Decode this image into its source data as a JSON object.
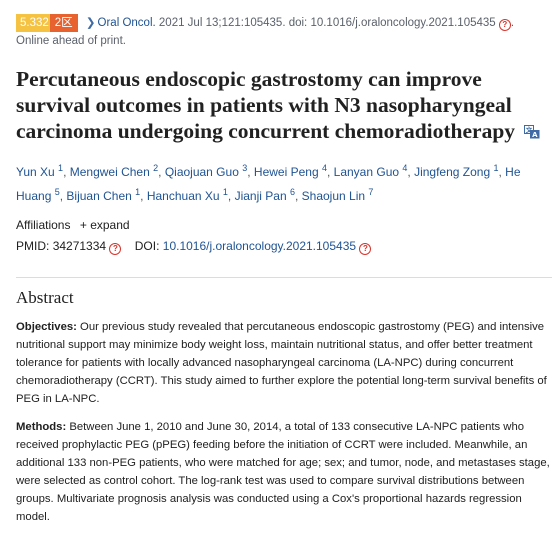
{
  "citation": {
    "impact_factor": "5.332",
    "quartile": "2区",
    "journal": "Oral Oncol.",
    "details": "2021 Jul 13;121:105435. doi: 10.1016/j.oraloncology.2021.105435",
    "status": "Online ahead of print."
  },
  "title": "Percutaneous endoscopic gastrostomy can improve survival outcomes in patients with N3 nasopharyngeal carcinoma undergoing concurrent chemoradiotherapy",
  "authors": [
    {
      "name": "Yun Xu",
      "sup": "1"
    },
    {
      "name": "Mengwei Chen",
      "sup": "2"
    },
    {
      "name": "Qiaojuan Guo",
      "sup": "3"
    },
    {
      "name": "Hewei Peng",
      "sup": "4"
    },
    {
      "name": "Lanyan Guo",
      "sup": "4"
    },
    {
      "name": "Jingfeng Zong",
      "sup": "1"
    },
    {
      "name": "He Huang",
      "sup": "5"
    },
    {
      "name": "Bijuan Chen",
      "sup": "1"
    },
    {
      "name": "Hanchuan Xu",
      "sup": "1"
    },
    {
      "name": "Jianji Pan",
      "sup": "6"
    },
    {
      "name": "Shaojun Lin",
      "sup": "7"
    }
  ],
  "affiliations": {
    "label": "Affiliations",
    "expand": "expand"
  },
  "ids": {
    "pmid_label": "PMID:",
    "pmid": "34271334",
    "doi_label": "DOI:",
    "doi": "10.1016/j.oraloncology.2021.105435"
  },
  "abstract": {
    "heading": "Abstract",
    "objectives_label": "Objectives:",
    "objectives_text": " Our previous study revealed that percutaneous endoscopic gastrostomy (PEG) and intensive nutritional support may minimize body weight loss, maintain nutritional status, and offer better treatment tolerance for patients with locally advanced nasopharyngeal carcinoma (LA-NPC) during concurrent chemoradiotherapy (CCRT). This study aimed to further explore the potential long-term survival benefits of PEG in LA-NPC.",
    "methods_label": "Methods:",
    "methods_text": " Between June 1, 2010 and June 30, 2014, a total of 133 consecutive LA-NPC patients who received prophylactic PEG (pPEG) feeding before the initiation of CCRT were included. Meanwhile, an additional 133 non-PEG patients, who were matched for age; sex; and tumor, node, and metastases stage, were selected as control cohort. The log-rank test was used to compare survival distributions between groups. Multivariate prognosis analysis was conducted using a Cox's proportional hazards regression model."
  },
  "colors": {
    "link": "#205493",
    "if_badge": "#f5c242",
    "quartile_badge": "#e8622f",
    "q_icon": "#d8322a"
  },
  "icons": {
    "translate": "translate-icon",
    "question": "question-circle-icon",
    "chevron": "chevron-right-icon"
  }
}
